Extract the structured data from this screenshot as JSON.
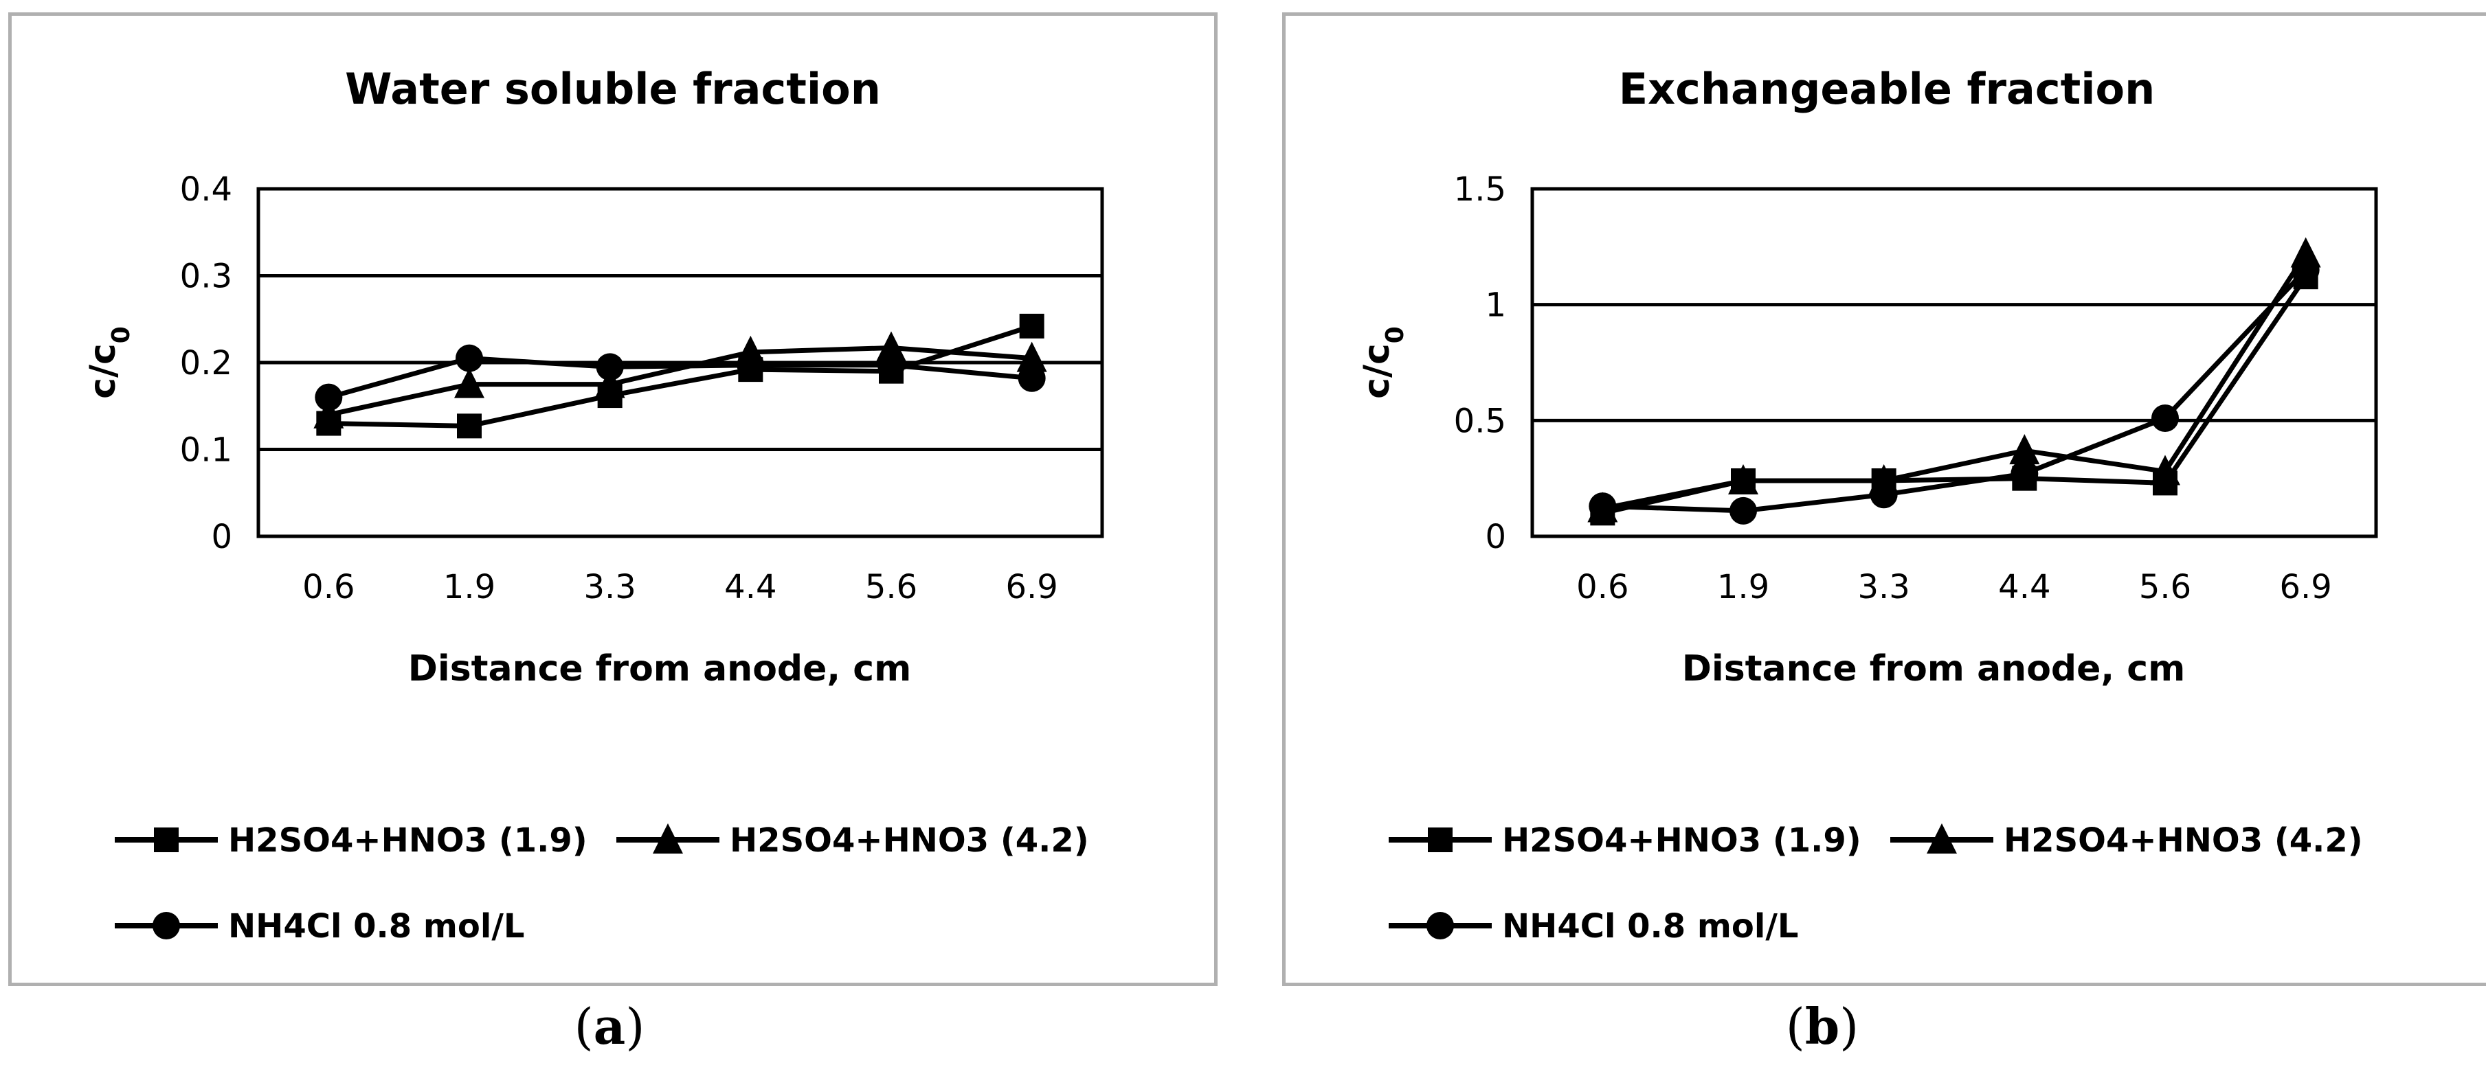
{
  "chart_data": [
    {
      "type": "line",
      "title": "Water soluble fraction",
      "xlabel": "Distance from anode, cm",
      "ylabel": "c/c",
      "ylabel_sub": "0",
      "categories": [
        "0.6",
        "1.9",
        "3.3",
        "4.4",
        "5.6",
        "6.9"
      ],
      "ylim": [
        0,
        0.4
      ],
      "yticks": [
        "0",
        "0.1",
        "0.2",
        "0.3",
        "0.4"
      ],
      "gridlines": [
        0.1,
        0.2,
        0.3
      ],
      "legend_position": "bottom",
      "series": [
        {
          "name": "H2SO4+HNO3 (1.9)",
          "marker": "square",
          "values": [
            0.13,
            0.127,
            0.162,
            0.192,
            0.19,
            0.242
          ]
        },
        {
          "name": "H2SO4+HNO3 (4.2)",
          "marker": "triangle",
          "values": [
            0.14,
            0.175,
            0.175,
            0.212,
            0.217,
            0.205
          ]
        },
        {
          "name": "NH4Cl 0.8 mol/L",
          "marker": "circle",
          "values": [
            0.16,
            0.205,
            0.195,
            0.197,
            0.197,
            0.182
          ]
        }
      ]
    },
    {
      "type": "line",
      "title": "Exchangeable fraction",
      "xlabel": "Distance from anode, cm",
      "ylabel": "c/c",
      "ylabel_sub": "0",
      "categories": [
        "0.6",
        "1.9",
        "3.3",
        "4.4",
        "5.6",
        "6.9"
      ],
      "ylim": [
        0,
        1.5
      ],
      "yticks": [
        "0",
        "0.5",
        "1",
        "1.5"
      ],
      "gridlines": [
        0.5,
        1.0
      ],
      "legend_position": "bottom",
      "series": [
        {
          "name": "H2SO4+HNO3 (1.9)",
          "marker": "square",
          "values": [
            0.1,
            0.24,
            0.24,
            0.25,
            0.23,
            1.12
          ]
        },
        {
          "name": "H2SO4+HNO3 (4.2)",
          "marker": "triangle",
          "values": [
            0.12,
            0.24,
            0.24,
            0.37,
            0.28,
            1.22
          ]
        },
        {
          "name": "NH4Cl 0.8 mol/L",
          "marker": "circle",
          "values": [
            0.13,
            0.11,
            0.18,
            0.27,
            0.51,
            1.15
          ]
        }
      ]
    }
  ],
  "captions": [
    "a",
    "b"
  ]
}
